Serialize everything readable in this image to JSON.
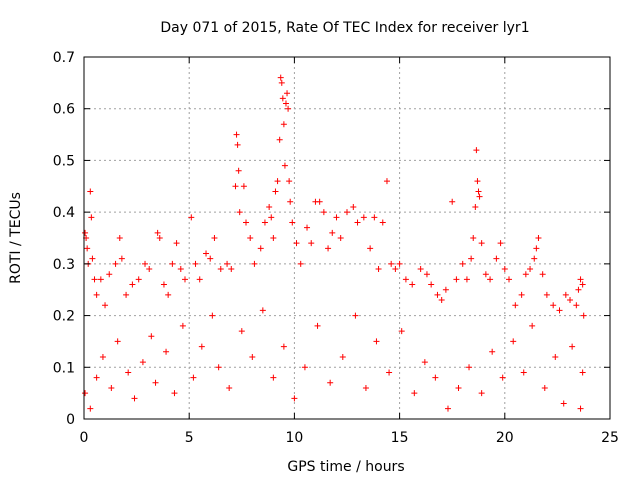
{
  "chart_data": {
    "type": "scatter",
    "title": "Day 071 of 2015, Rate Of TEC Index for receiver lyr1",
    "xlabel": "GPS time / hours",
    "ylabel": "ROTI / TECUs",
    "xlim": [
      0,
      25
    ],
    "ylim": [
      0,
      0.7
    ],
    "x_ticks": [
      0,
      5,
      10,
      15,
      20,
      25
    ],
    "y_ticks": [
      0,
      0.1,
      0.2,
      0.3,
      0.4,
      0.5,
      0.6,
      0.7
    ],
    "x_tick_labels": [
      "0",
      "5",
      "10",
      "15",
      "20",
      "25"
    ],
    "y_tick_labels": [
      "0",
      "0.1",
      "0.2",
      "0.3",
      "0.4",
      "0.5",
      "0.6",
      "0.7"
    ],
    "grid": true,
    "marker": "+",
    "marker_color": "#ff0000",
    "series": [
      {
        "points": [
          [
            0.05,
            0.36
          ],
          [
            0.1,
            0.35
          ],
          [
            0.15,
            0.33
          ],
          [
            0.2,
            0.3
          ],
          [
            0.3,
            0.44
          ],
          [
            0.35,
            0.39
          ],
          [
            0.4,
            0.31
          ],
          [
            0.5,
            0.27
          ],
          [
            0.6,
            0.24
          ],
          [
            0.8,
            0.27
          ],
          [
            1.0,
            0.22
          ],
          [
            1.2,
            0.28
          ],
          [
            1.5,
            0.3
          ],
          [
            1.7,
            0.35
          ],
          [
            1.8,
            0.31
          ],
          [
            2.0,
            0.24
          ],
          [
            2.3,
            0.26
          ],
          [
            2.6,
            0.27
          ],
          [
            2.9,
            0.3
          ],
          [
            3.1,
            0.29
          ],
          [
            3.5,
            0.36
          ],
          [
            3.6,
            0.35
          ],
          [
            3.8,
            0.26
          ],
          [
            4.0,
            0.24
          ],
          [
            4.2,
            0.3
          ],
          [
            4.4,
            0.34
          ],
          [
            4.6,
            0.29
          ],
          [
            4.8,
            0.27
          ],
          [
            5.1,
            0.39
          ],
          [
            5.3,
            0.3
          ],
          [
            5.5,
            0.27
          ],
          [
            5.8,
            0.32
          ],
          [
            6.0,
            0.31
          ],
          [
            6.2,
            0.35
          ],
          [
            6.5,
            0.29
          ],
          [
            6.8,
            0.3
          ],
          [
            7.0,
            0.29
          ],
          [
            7.2,
            0.45
          ],
          [
            7.25,
            0.55
          ],
          [
            7.3,
            0.53
          ],
          [
            7.35,
            0.48
          ],
          [
            7.4,
            0.4
          ],
          [
            7.6,
            0.45
          ],
          [
            7.7,
            0.38
          ],
          [
            7.9,
            0.35
          ],
          [
            8.1,
            0.3
          ],
          [
            8.4,
            0.33
          ],
          [
            8.6,
            0.38
          ],
          [
            8.8,
            0.41
          ],
          [
            8.9,
            0.39
          ],
          [
            9.0,
            0.35
          ],
          [
            9.1,
            0.44
          ],
          [
            9.2,
            0.46
          ],
          [
            9.3,
            0.54
          ],
          [
            9.35,
            0.66
          ],
          [
            9.4,
            0.65
          ],
          [
            9.45,
            0.62
          ],
          [
            9.5,
            0.57
          ],
          [
            9.55,
            0.49
          ],
          [
            9.6,
            0.61
          ],
          [
            9.65,
            0.63
          ],
          [
            9.7,
            0.6
          ],
          [
            9.75,
            0.46
          ],
          [
            9.8,
            0.42
          ],
          [
            9.9,
            0.38
          ],
          [
            10.1,
            0.34
          ],
          [
            10.3,
            0.3
          ],
          [
            10.6,
            0.37
          ],
          [
            10.8,
            0.34
          ],
          [
            11.0,
            0.42
          ],
          [
            11.2,
            0.42
          ],
          [
            11.4,
            0.4
          ],
          [
            11.6,
            0.33
          ],
          [
            11.8,
            0.36
          ],
          [
            12.0,
            0.39
          ],
          [
            12.2,
            0.35
          ],
          [
            12.5,
            0.4
          ],
          [
            12.8,
            0.41
          ],
          [
            13.0,
            0.38
          ],
          [
            13.3,
            0.39
          ],
          [
            13.6,
            0.33
          ],
          [
            13.8,
            0.39
          ],
          [
            14.0,
            0.29
          ],
          [
            14.2,
            0.38
          ],
          [
            14.4,
            0.46
          ],
          [
            14.6,
            0.3
          ],
          [
            14.8,
            0.29
          ],
          [
            15.0,
            0.3
          ],
          [
            15.3,
            0.27
          ],
          [
            15.6,
            0.26
          ],
          [
            16.0,
            0.29
          ],
          [
            16.3,
            0.28
          ],
          [
            16.5,
            0.26
          ],
          [
            16.8,
            0.24
          ],
          [
            17.0,
            0.23
          ],
          [
            17.2,
            0.25
          ],
          [
            17.5,
            0.42
          ],
          [
            17.7,
            0.27
          ],
          [
            18.0,
            0.3
          ],
          [
            18.2,
            0.27
          ],
          [
            18.4,
            0.31
          ],
          [
            18.5,
            0.35
          ],
          [
            18.6,
            0.41
          ],
          [
            18.65,
            0.52
          ],
          [
            18.7,
            0.46
          ],
          [
            18.75,
            0.44
          ],
          [
            18.8,
            0.43
          ],
          [
            18.9,
            0.34
          ],
          [
            19.1,
            0.28
          ],
          [
            19.3,
            0.27
          ],
          [
            19.6,
            0.31
          ],
          [
            19.8,
            0.34
          ],
          [
            20.0,
            0.29
          ],
          [
            20.2,
            0.27
          ],
          [
            20.5,
            0.22
          ],
          [
            20.8,
            0.24
          ],
          [
            21.0,
            0.28
          ],
          [
            21.2,
            0.29
          ],
          [
            21.4,
            0.31
          ],
          [
            21.5,
            0.33
          ],
          [
            21.6,
            0.35
          ],
          [
            21.8,
            0.28
          ],
          [
            22.0,
            0.24
          ],
          [
            22.3,
            0.22
          ],
          [
            22.6,
            0.21
          ],
          [
            22.9,
            0.24
          ],
          [
            23.1,
            0.23
          ],
          [
            23.4,
            0.22
          ],
          [
            23.5,
            0.25
          ],
          [
            23.6,
            0.27
          ],
          [
            23.7,
            0.26
          ],
          [
            23.75,
            0.2
          ],
          [
            0.05,
            0.05
          ],
          [
            0.3,
            0.02
          ],
          [
            0.6,
            0.08
          ],
          [
            0.9,
            0.12
          ],
          [
            1.3,
            0.06
          ],
          [
            1.6,
            0.15
          ],
          [
            2.1,
            0.09
          ],
          [
            2.4,
            0.04
          ],
          [
            2.8,
            0.11
          ],
          [
            3.2,
            0.16
          ],
          [
            3.4,
            0.07
          ],
          [
            3.9,
            0.13
          ],
          [
            4.3,
            0.05
          ],
          [
            4.7,
            0.18
          ],
          [
            5.2,
            0.08
          ],
          [
            5.6,
            0.14
          ],
          [
            6.1,
            0.2
          ],
          [
            6.4,
            0.1
          ],
          [
            6.9,
            0.06
          ],
          [
            7.5,
            0.17
          ],
          [
            8.0,
            0.12
          ],
          [
            8.5,
            0.21
          ],
          [
            9.0,
            0.08
          ],
          [
            9.5,
            0.14
          ],
          [
            10.0,
            0.04
          ],
          [
            10.5,
            0.1
          ],
          [
            11.1,
            0.18
          ],
          [
            11.7,
            0.07
          ],
          [
            12.3,
            0.12
          ],
          [
            12.9,
            0.2
          ],
          [
            13.4,
            0.06
          ],
          [
            13.9,
            0.15
          ],
          [
            14.5,
            0.09
          ],
          [
            15.1,
            0.17
          ],
          [
            15.7,
            0.05
          ],
          [
            16.2,
            0.11
          ],
          [
            16.7,
            0.08
          ],
          [
            17.3,
            0.02
          ],
          [
            17.8,
            0.06
          ],
          [
            18.3,
            0.1
          ],
          [
            18.9,
            0.05
          ],
          [
            19.4,
            0.13
          ],
          [
            19.9,
            0.08
          ],
          [
            20.4,
            0.15
          ],
          [
            20.9,
            0.09
          ],
          [
            21.3,
            0.18
          ],
          [
            21.9,
            0.06
          ],
          [
            22.4,
            0.12
          ],
          [
            22.8,
            0.03
          ],
          [
            23.2,
            0.14
          ],
          [
            23.6,
            0.02
          ],
          [
            23.7,
            0.09
          ]
        ]
      }
    ]
  }
}
